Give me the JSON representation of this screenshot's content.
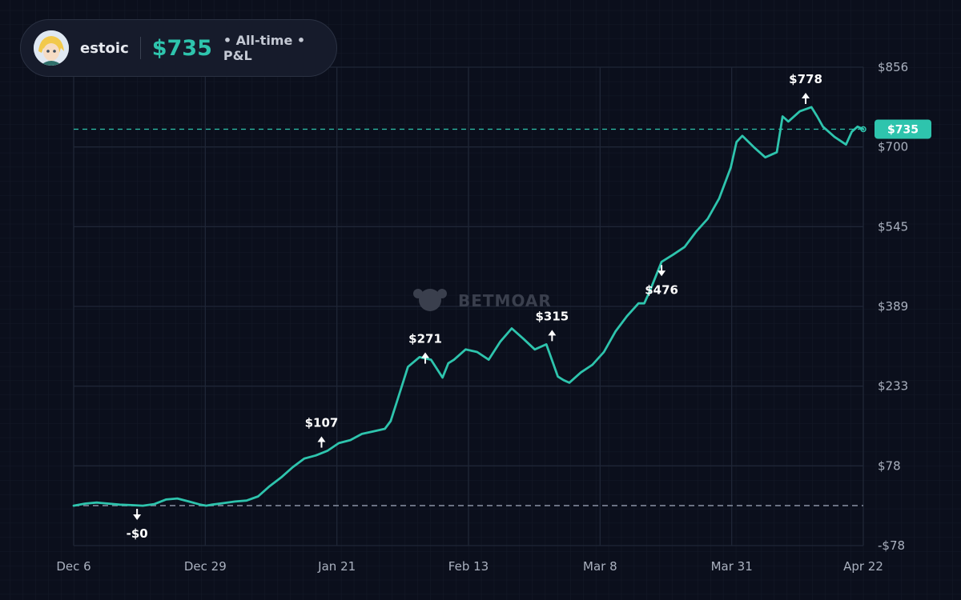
{
  "header": {
    "username": "estoic",
    "value": "$735",
    "label": "• All-time • P&L"
  },
  "watermark": "BETMOAR",
  "colors": {
    "background": "#0b0f1c",
    "line": "#2ec4ad",
    "grid": "#1f2636",
    "axis_text": "#aab1bf",
    "zero_line": "#6b7283"
  },
  "chart_data": {
    "type": "line",
    "title": "",
    "xlabel": "",
    "ylabel": "",
    "x_tick_labels": [
      "Dec 6",
      "Dec 29",
      "Jan 21",
      "Feb 13",
      "Mar 8",
      "Mar 31",
      "Apr 22"
    ],
    "y_tick_labels": [
      "$856",
      "$700",
      "$545",
      "$389",
      "$233",
      "$78",
      "-$78"
    ],
    "ylim": [
      -78,
      856
    ],
    "x_range_days": [
      0,
      137
    ],
    "grid": true,
    "current_value": 735,
    "current_value_label": "$735",
    "zero_line": 0,
    "series": [
      {
        "x": [
          0,
          2,
          4,
          6,
          8,
          10,
          12,
          14,
          16,
          18,
          20,
          22,
          23,
          24,
          26,
          28,
          30,
          32,
          34,
          36,
          38,
          40,
          42,
          44,
          46,
          48,
          50,
          52,
          54,
          55,
          56,
          58,
          60,
          62,
          64,
          65,
          66,
          68,
          70,
          72,
          74,
          76,
          78,
          80,
          82,
          84,
          85,
          86,
          88,
          90,
          92,
          94,
          96,
          98,
          99,
          100,
          102,
          104,
          106,
          108,
          110,
          112,
          114,
          115,
          116,
          118,
          120,
          122,
          123,
          124,
          126,
          128,
          129,
          130,
          132,
          134,
          135,
          136,
          137
        ],
        "y": [
          0,
          4,
          6,
          4,
          2,
          1,
          0,
          3,
          12,
          14,
          8,
          2,
          0,
          2,
          5,
          8,
          10,
          18,
          38,
          55,
          75,
          92,
          98,
          107,
          122,
          128,
          140,
          145,
          150,
          165,
          200,
          271,
          290,
          285,
          250,
          278,
          285,
          305,
          300,
          285,
          320,
          346,
          326,
          305,
          315,
          252,
          245,
          240,
          260,
          275,
          300,
          340,
          370,
          395,
          395,
          420,
          476,
          490,
          505,
          535,
          560,
          600,
          660,
          710,
          722,
          700,
          680,
          690,
          760,
          750,
          770,
          778,
          760,
          740,
          720,
          705,
          730,
          740,
          735
        ]
      }
    ],
    "annotations": [
      {
        "x": 11,
        "y": 0,
        "label": "-$0",
        "arrow": "down"
      },
      {
        "x": 43,
        "y": 107,
        "label": "$107",
        "arrow": "up"
      },
      {
        "x": 61,
        "y": 271,
        "label": "$271",
        "arrow": "up"
      },
      {
        "x": 83,
        "y": 315,
        "label": "$315",
        "arrow": "up"
      },
      {
        "x": 102,
        "y": 476,
        "label": "$476",
        "arrow": "down"
      },
      {
        "x": 127,
        "y": 778,
        "label": "$778",
        "arrow": "up"
      }
    ]
  }
}
